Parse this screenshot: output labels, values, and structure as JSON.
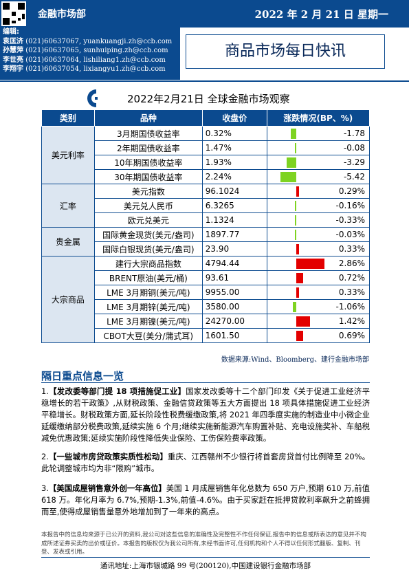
{
  "header": {
    "department": "金融市场部",
    "date": "2022 年 2 月 21 日  星期一"
  },
  "editors": {
    "label": "编辑:",
    "list": [
      {
        "name": "袁匡济",
        "phone": "(021)60637067,",
        "email": "yuankuangji.zh@ccb.com"
      },
      {
        "name": "孙慧萍",
        "phone": "(021)60637065,",
        "email": "sunhuiping.zh@ccb.com"
      },
      {
        "name": "李世亮",
        "phone": "(021)60637064,",
        "email": "lishiliang1.zh@ccb.com"
      },
      {
        "name": "李翔宇",
        "phone": "(021)60637054,",
        "email": "lixiangyu1.zh@ccb.com"
      }
    ]
  },
  "report_title": "商品市场每日快讯",
  "table": {
    "title": "2022年2月21日 全球金融市场观察",
    "headers": [
      "类别",
      "品种",
      "收盘价",
      "涨跌情况(BP、%)"
    ],
    "rows": [
      {
        "category": "美元利率",
        "name": "3月期国债收益率",
        "close": "0.32%",
        "change": "-1.78",
        "num": -1.78
      },
      {
        "category": "",
        "name": "2年期国债收益率",
        "close": "1.47%",
        "change": "-0.08",
        "num": -0.08
      },
      {
        "category": "",
        "name": "10年期国债收益率",
        "close": "1.93%",
        "change": "-3.29",
        "num": -3.29
      },
      {
        "category": "",
        "name": "30年期国债收益率",
        "close": "2.24%",
        "change": "-5.42",
        "num": -5.42
      },
      {
        "category": "汇率",
        "name": "美元指数",
        "close": "96.1024",
        "change": "0.29%",
        "num": 0.29
      },
      {
        "category": "",
        "name": "美元兑人民币",
        "close": "6.3265",
        "change": "-0.16%",
        "num": -0.16
      },
      {
        "category": "",
        "name": "欧元兑美元",
        "close": "1.1324",
        "change": "-0.33%",
        "num": -0.33
      },
      {
        "category": "贵金属",
        "name": "国际黄金现货(美元/盎司)",
        "close": "1897.77",
        "change": "-0.03%",
        "num": -0.03
      },
      {
        "category": "",
        "name": "国际白银现货(美元/盎司)",
        "close": "23.90",
        "change": "0.33%",
        "num": 0.33
      },
      {
        "category": "大宗商品",
        "name": "建行大宗商品指数",
        "close": "4794.44",
        "change": "2.86%",
        "num": 2.86
      },
      {
        "category": "",
        "name": "BRENT原油(美元/桶)",
        "close": "93.61",
        "change": "0.72%",
        "num": 0.72
      },
      {
        "category": "",
        "name": "LME 3月期铜(美元/吨)",
        "close": "9955.00",
        "change": "0.33%",
        "num": 0.33
      },
      {
        "category": "",
        "name": "LME 3月期锌(美元/吨)",
        "close": "3580.00",
        "change": "-1.06%",
        "num": -1.06
      },
      {
        "category": "",
        "name": "LME 3月期镍(美元/吨)",
        "close": "24270.00",
        "change": "1.42%",
        "num": 1.42
      },
      {
        "category": "",
        "name": "CBOT大豆(美分/蒲式耳)",
        "close": "1601.50",
        "change": "0.69%",
        "num": 0.69
      }
    ],
    "source": "数据来源:Wind、Bloomberg、建行金融市场部"
  },
  "section_title": "隔日重点信息一览",
  "news": [
    {
      "num": "1.",
      "headline": "【发改委等部门提 18 项措施促工业】",
      "body": "国家发改委等十二个部门印发《关于促进工业经济平稳增长的若干政策》,从财税政策、金融信贷政策等五大方面提出 18 项具体措施促进工业经济平稳增长。财税政策方面,延长阶段性税费缓缴政策,将 2021 年四季度实施的制造业中小微企业延缓缴纳部分税费政策,延续实施 6 个月;继续实施新能源汽车购置补贴、充电设施奖补、车船税减免优惠政策;延续实施阶段性降低失业保险、工伤保险费率政策。"
    },
    {
      "num": "2.",
      "headline": "【一些城市房贷政策实质性松动】",
      "body": "重庆、江西赣州不少银行将首套房贷首付比例降至 20%。此轮调整城市均为非“限购”城市。"
    },
    {
      "num": "3.",
      "headline": "【美国成屋销售意外创一年高位】",
      "body": "美国 1 月成屋销售年化总数为 650 万户,预期 610 万,前值 618 万。年化月率为 6.7%,预期-1.3%,前值-4.6%。由于买家赶在抵押贷款利率飙升之前蜂拥而至,使得成屋销售量意外地增加到了一年来的高点。"
    }
  ],
  "disclaimer": "本报告中的信息均来源于已公开的资料,我公司对这些信息的准确性及完整性不作任何保证,报告中的信息或所表达的意见并不构成所述证券买卖的出价或征价。本报告的版权仅为我公司所有,未经书面许可,任何机构和个人不得以任何形式翻版、复制、刊登、发表或引用。",
  "footer": "通讯地址:上海市银城路 99 号(200120),中国建设银行金融市场部",
  "colors": {
    "brand": "#0b4a8f",
    "up": "#e30000",
    "down": "#7ed321"
  }
}
